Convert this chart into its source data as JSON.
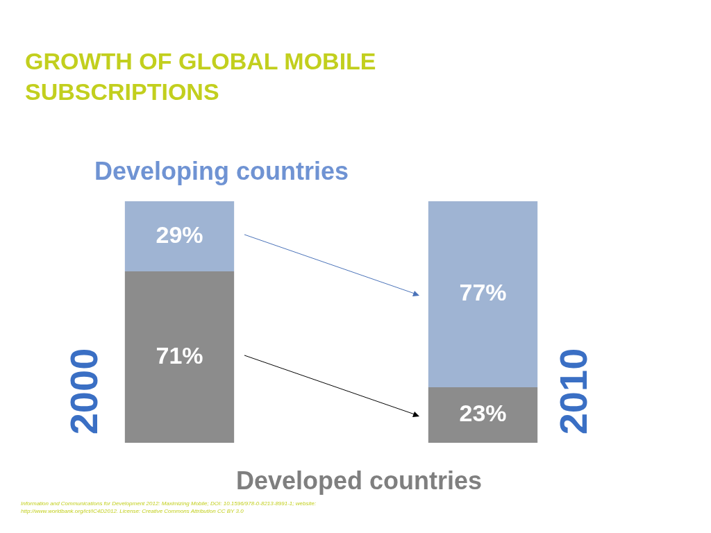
{
  "chart_data": {
    "type": "bar",
    "title": "GROWTH OF GLOBAL MOBILE SUBSCRIPTIONS",
    "categories": [
      "2000",
      "2010"
    ],
    "stacked": true,
    "legend": false,
    "series": [
      {
        "name": "Developed countries",
        "color": "#8c8c8c",
        "values": [
          71,
          23
        ],
        "value_labels": [
          "71%",
          "23%"
        ]
      },
      {
        "name": "Developing countries",
        "color": "#9fb4d3",
        "values": [
          29,
          77
        ],
        "value_labels": [
          "29%",
          "77%"
        ]
      }
    ],
    "annotations": [
      "Information and Communications for Development 2012: Maximizing Mobile; DOI: 10.1596/978-0-8213-8991-1; website: http://www.worldbank.org/ict/IC4D2012. License: Creative Commons Attribution CC BY 3.0"
    ]
  }
}
